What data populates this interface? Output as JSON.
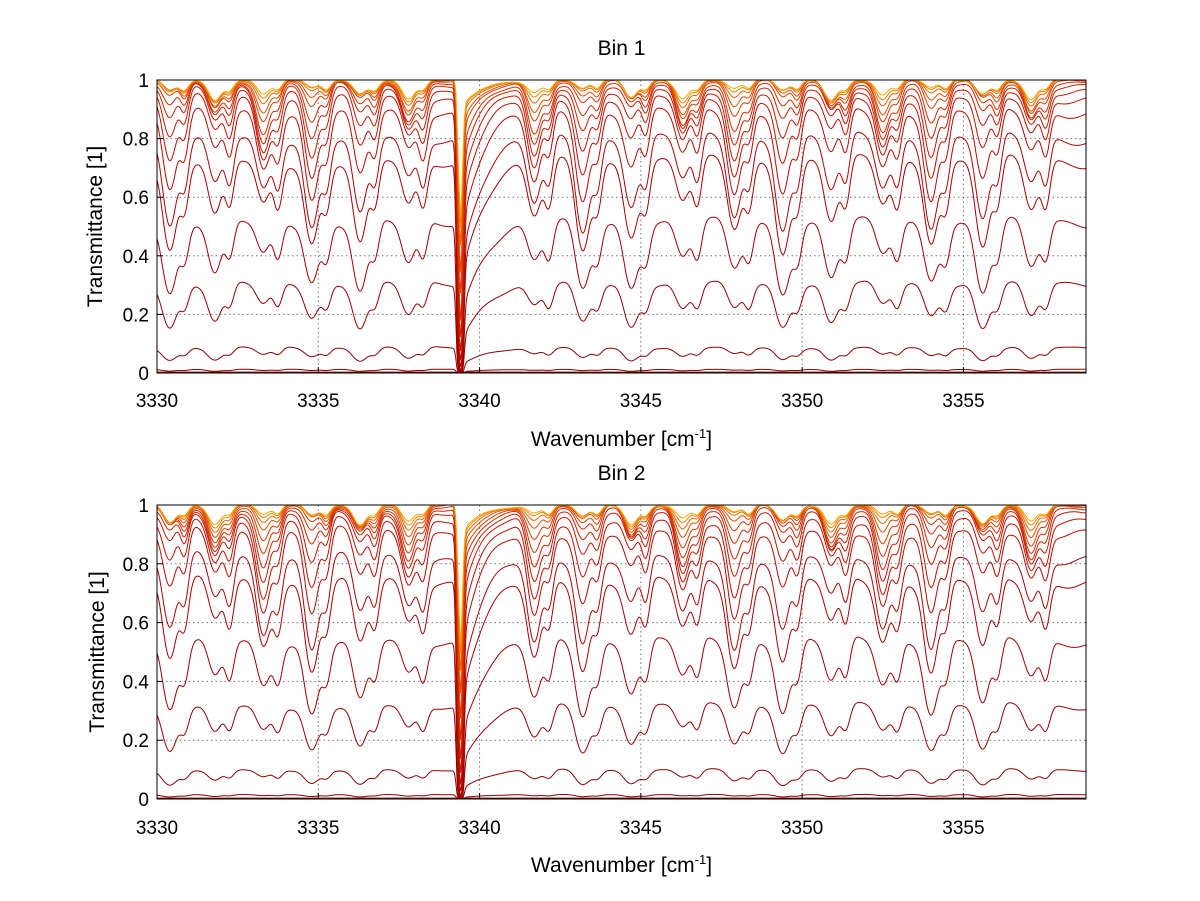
{
  "chart_data": [
    {
      "type": "line",
      "title": "Bin 1",
      "xlabel": "Wavenumber [cm",
      "xlabel_sup": "-1",
      "xlabel_end": "]",
      "ylabel": "Transmittance [1]",
      "xlim": [
        3330,
        3358.8
      ],
      "ylim": [
        0,
        1
      ],
      "xticks": [
        "3330",
        "3335",
        "3340",
        "3345",
        "3350",
        "3355"
      ],
      "yticks": [
        "0",
        "0.2",
        "0.4",
        "0.6",
        "0.8",
        "1"
      ],
      "grid": true,
      "strong_line_wavenumber": 3339.4,
      "weak_line_wavenumbers": [
        3330.4,
        3331.8,
        3333.3,
        3334.8,
        3336.3,
        3337.8,
        3341.7,
        3343.2,
        3344.7,
        3346.3,
        3347.9,
        3349.4,
        3350.9,
        3352.5,
        3354.0,
        3355.6,
        3357.1
      ],
      "series_baselines": [
        0.003,
        0.01,
        0.07,
        0.25,
        0.43,
        0.62,
        0.7,
        0.8,
        0.86,
        0.9,
        0.93,
        0.95,
        0.97,
        0.98,
        0.99,
        0.995,
        0.998
      ],
      "series_colors": [
        "#7a0000",
        "#8b0000",
        "#8b0000",
        "#960000",
        "#9e0000",
        "#a60000",
        "#ad0500",
        "#b50a00",
        "#bd1000",
        "#c51800",
        "#cc2200",
        "#d42e00",
        "#dc3c00",
        "#e44e00",
        "#ec6600",
        "#f28200",
        "#f7a800"
      ]
    },
    {
      "type": "line",
      "title": "Bin 2",
      "xlabel": "Wavenumber [cm",
      "xlabel_sup": "-1",
      "xlabel_end": "]",
      "ylabel": "Transmittance [1]",
      "xlim": [
        3330,
        3358.8
      ],
      "ylim": [
        0,
        1
      ],
      "xticks": [
        "3330",
        "3335",
        "3340",
        "3345",
        "3350",
        "3355"
      ],
      "yticks": [
        "0",
        "0.2",
        "0.4",
        "0.6",
        "0.8",
        "1"
      ],
      "grid": true,
      "strong_line_wavenumber": 3339.4,
      "weak_line_wavenumbers": [
        3330.4,
        3331.8,
        3333.3,
        3334.8,
        3336.3,
        3337.8,
        3341.7,
        3343.2,
        3344.7,
        3346.3,
        3347.9,
        3349.4,
        3350.9,
        3352.5,
        3354.0,
        3355.6,
        3357.1
      ],
      "series_baselines": [
        0.003,
        0.012,
        0.08,
        0.26,
        0.45,
        0.64,
        0.72,
        0.82,
        0.87,
        0.91,
        0.935,
        0.955,
        0.97,
        0.982,
        0.99,
        0.995,
        0.998
      ],
      "series_colors": [
        "#7a0000",
        "#8b0000",
        "#8b0000",
        "#960000",
        "#9e0000",
        "#a60000",
        "#ad0500",
        "#b50a00",
        "#bd1000",
        "#c51800",
        "#cc2200",
        "#d42e00",
        "#dc3c00",
        "#e44e00",
        "#ec6600",
        "#f28200",
        "#f7a800"
      ]
    }
  ]
}
